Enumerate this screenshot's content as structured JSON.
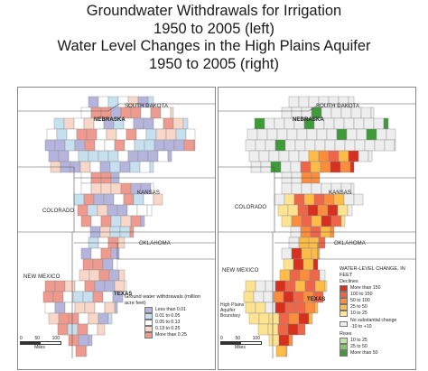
{
  "title": {
    "line1": "Groundwater Withdrawals for Irrigation",
    "line2": "1950 to 2005 (left)",
    "line3": "Water Level Changes in the High Plains Aquifer",
    "line4": "1950 to 2005 (right)"
  },
  "left_map": {
    "states": {
      "south_dakota": "SOUTH DAKOTA",
      "nebraska": "NEBRASKA",
      "colorado": "COLORADO",
      "kansas": "KANSAS",
      "oklahoma": "OKLAHOMA",
      "new_mexico": "NEW MEXICO",
      "texas": "TEXAS"
    },
    "legend": {
      "title": "Ground water withdrawals (million acre feet)",
      "items": [
        {
          "label": "Less than 0.01",
          "color": "#b4b4dc"
        },
        {
          "label": "0.01 to 0.05",
          "color": "#c6e0f0"
        },
        {
          "label": "0.05 to 0.13",
          "color": "#ffffff"
        },
        {
          "label": "0.13 to 0.25",
          "color": "#f9d7c8"
        },
        {
          "label": "More than 0.25",
          "color": "#ee9a8e"
        }
      ]
    },
    "scale": {
      "labels": [
        "0",
        "50",
        "100"
      ],
      "unit": "Miles"
    }
  },
  "right_map": {
    "states": {
      "south_dakota": "SOUTH DAKOTA",
      "nebraska": "NEBRASKA",
      "colorado": "COLORADO",
      "kansas": "KANSAS",
      "oklahoma": "OKLAHOMA",
      "new_mexico": "NEW MEXICO",
      "texas": "TEXAS"
    },
    "boundary_label": "High Plains Aquifer Boundary",
    "legend": {
      "title": "WATER-LEVEL CHANGE, IN FEET",
      "declines_label": "Declines",
      "declines": [
        {
          "label": "More than 150",
          "color": "#d7301f"
        },
        {
          "label": "100 to 150",
          "color": "#ef6548"
        },
        {
          "label": "50 to 100",
          "color": "#fc8d3c"
        },
        {
          "label": "25 to 50",
          "color": "#fdbb48"
        },
        {
          "label": "10 to 25",
          "color": "#fee391"
        }
      ],
      "no_change_label": "No substantial change -10 to +10",
      "no_change_color": "#eeeeee",
      "rises_label": "Rises",
      "rises": [
        {
          "label": "10 to 25",
          "color": "#c2e3a6"
        },
        {
          "label": "25 to 50",
          "color": "#86c46a"
        },
        {
          "label": "More than 50",
          "color": "#3f9a3a"
        }
      ]
    },
    "scale": {
      "labels": [
        "0",
        "50",
        "100"
      ],
      "unit": "Miles"
    }
  }
}
